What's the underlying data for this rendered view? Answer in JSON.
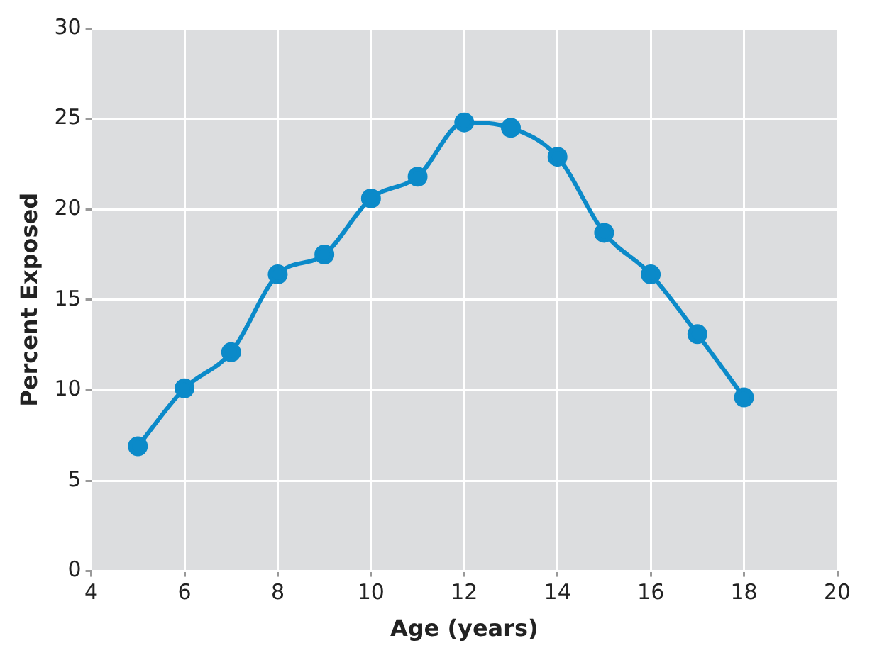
{
  "chart_data": {
    "type": "line",
    "xlabel": "Age (years)",
    "ylabel": "Percent Exposed",
    "x": [
      5,
      6,
      7,
      8,
      9,
      10,
      11,
      12,
      13,
      14,
      15,
      16,
      17,
      18
    ],
    "series": [
      {
        "color": "#0b8ac9",
        "values": [
          6.9,
          10.1,
          12.1,
          16.4,
          17.5,
          20.6,
          21.8,
          24.8,
          24.5,
          22.9,
          18.7,
          16.4,
          13.1,
          9.6
        ]
      }
    ],
    "xlim": [
      4,
      20
    ],
    "xticks": [
      4,
      6,
      8,
      10,
      12,
      14,
      16,
      18,
      20
    ],
    "ylim": [
      0,
      30
    ],
    "yticks": [
      0,
      5,
      10,
      15,
      20,
      25,
      30
    ],
    "grid": true,
    "legend": false,
    "marker": "circle",
    "line_style": "solid"
  }
}
